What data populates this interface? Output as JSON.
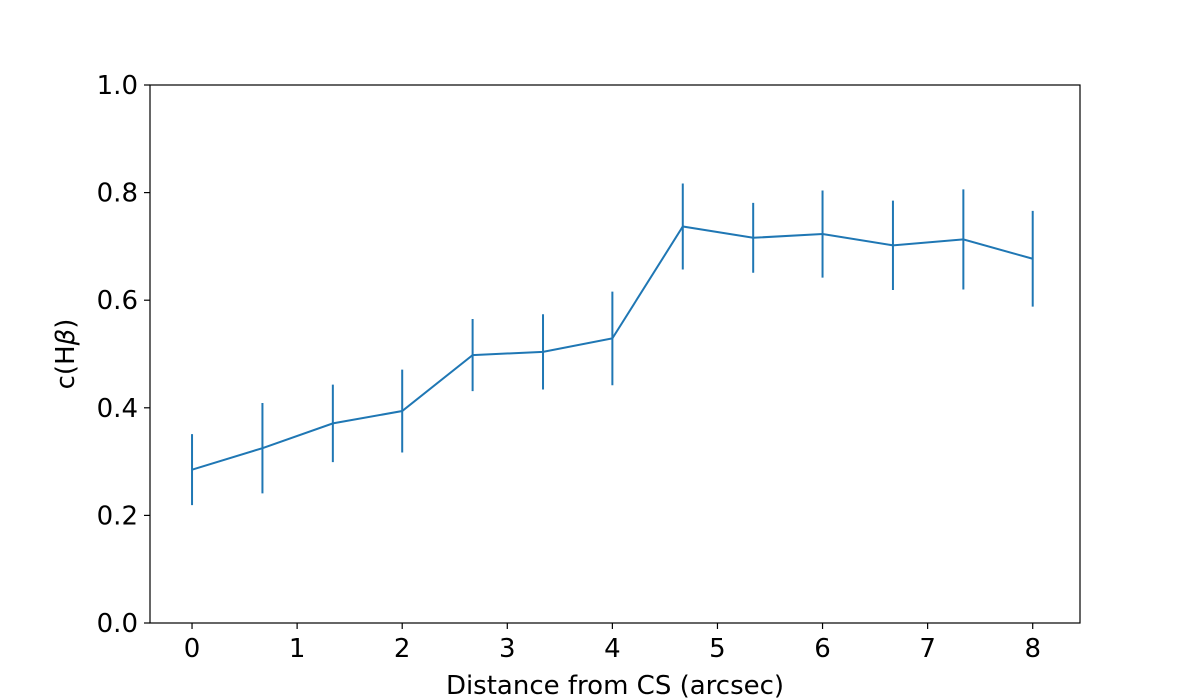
{
  "chart_data": {
    "type": "line",
    "title": "",
    "xlabel": "Distance from CS (arcsec)",
    "ylabel": "c(H",
    "ylabel_symbol": "β",
    "ylabel_close": ")",
    "xlim": [
      -0.4,
      8.45
    ],
    "ylim": [
      0.0,
      1.0
    ],
    "x_ticks": [
      0,
      1,
      2,
      3,
      4,
      5,
      6,
      7,
      8
    ],
    "x_tick_labels": [
      "0",
      "1",
      "2",
      "3",
      "4",
      "5",
      "6",
      "7",
      "8"
    ],
    "y_ticks": [
      0.0,
      0.2,
      0.4,
      0.6,
      0.8,
      1.0
    ],
    "y_tick_labels": [
      "0.0",
      "0.2",
      "0.4",
      "0.6",
      "0.8",
      "1.0"
    ],
    "grid": false,
    "color": "#1f77b4",
    "series": [
      {
        "x": [
          0,
          0.67,
          1.34,
          2.0,
          2.67,
          3.34,
          4.0,
          4.67,
          5.34,
          6.0,
          6.67,
          7.34,
          8.0
        ],
        "y": [
          0.285,
          0.325,
          0.371,
          0.394,
          0.498,
          0.504,
          0.529,
          0.737,
          0.716,
          0.723,
          0.702,
          0.713,
          0.677
        ],
        "yerr": [
          0.066,
          0.084,
          0.072,
          0.077,
          0.067,
          0.07,
          0.087,
          0.08,
          0.065,
          0.081,
          0.083,
          0.093,
          0.089
        ]
      }
    ]
  }
}
